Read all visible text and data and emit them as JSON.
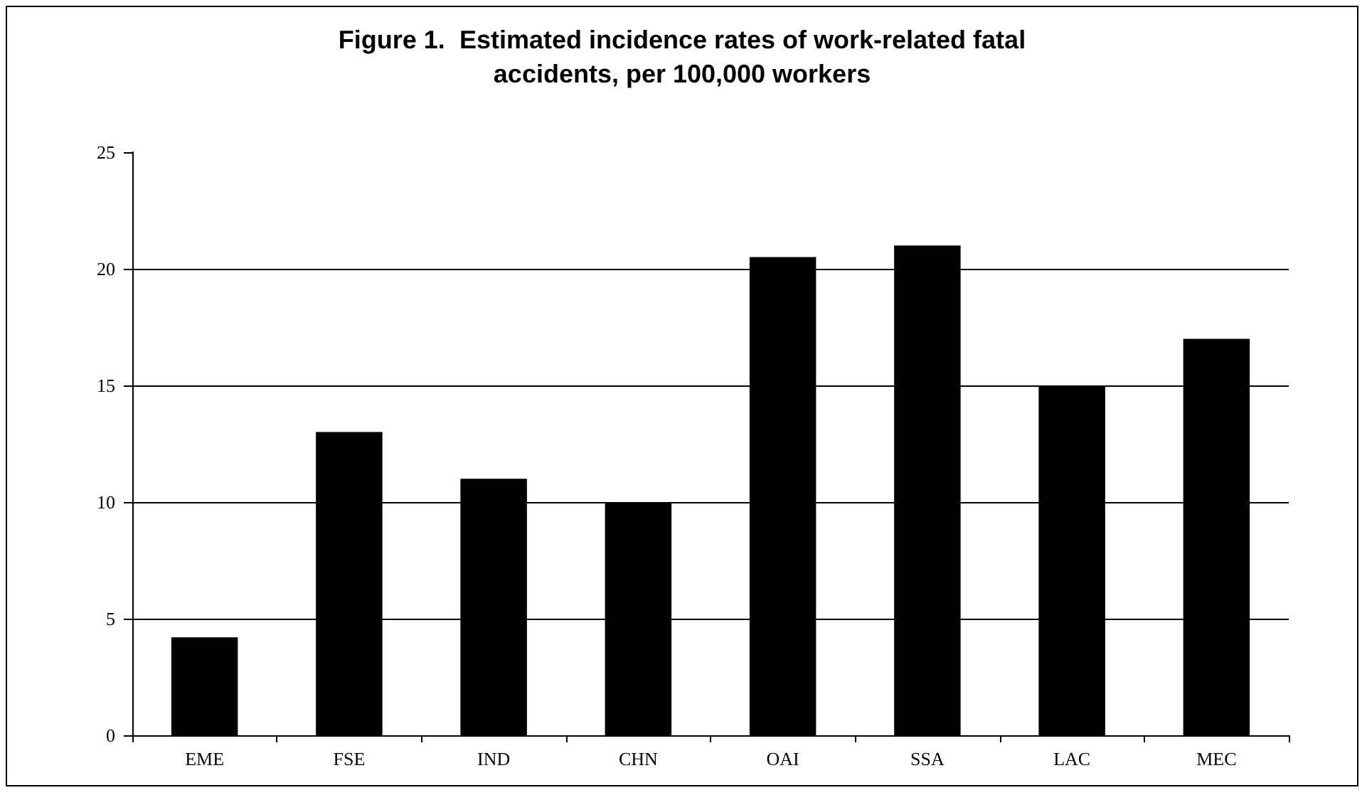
{
  "chart_data": {
    "type": "bar",
    "title": "Figure 1.  Estimated incidence rates of work-related fatal\naccidents, per 100,000 workers",
    "categories": [
      "EME",
      "FSE",
      "IND",
      "CHN",
      "OAI",
      "SSA",
      "LAC",
      "MEC"
    ],
    "values": [
      4.2,
      13,
      11,
      10,
      20.5,
      21,
      15,
      17
    ],
    "color": "#000000",
    "ylim": [
      0,
      25
    ],
    "yticks": [
      0,
      5,
      10,
      15,
      20,
      25
    ],
    "grid": "y"
  }
}
